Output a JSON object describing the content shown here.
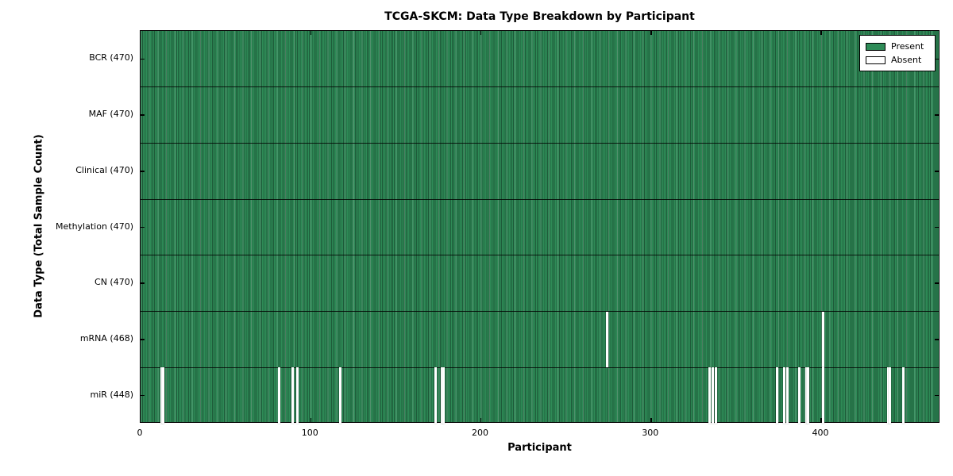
{
  "title": "TCGA-SKCM: Data Type Breakdown by Participant",
  "legend": {
    "items": [
      {
        "label": "Present",
        "color": "#2e8b57"
      },
      {
        "label": "Absent",
        "color": "#ffffff"
      }
    ],
    "position": "upper right"
  },
  "colors": {
    "present": "#2e8b57",
    "absent": "#ffffff",
    "frame": "#000000",
    "background": "#ffffff"
  },
  "chart_data": {
    "type": "heatmap",
    "title": "TCGA-SKCM: Data Type Breakdown by Participant",
    "xlabel": "Participant",
    "ylabel": "Data Type (Total Sample Count)",
    "x_range": [
      0,
      470
    ],
    "x_ticks": [
      0,
      100,
      200,
      300,
      400
    ],
    "n_participants": 470,
    "grid": false,
    "legend_entries": [
      "Present",
      "Absent"
    ],
    "legend_position": "upper right",
    "rows": [
      {
        "data_type": "BCR",
        "tick_label": "BCR (470)",
        "present_count": 470,
        "absent_participants": []
      },
      {
        "data_type": "MAF",
        "tick_label": "MAF (470)",
        "present_count": 470,
        "absent_participants": []
      },
      {
        "data_type": "Clinical",
        "tick_label": "Clinical (470)",
        "present_count": 470,
        "absent_participants": []
      },
      {
        "data_type": "Methylation",
        "tick_label": "Methylation (470)",
        "present_count": 470,
        "absent_participants": []
      },
      {
        "data_type": "CN",
        "tick_label": "CN (470)",
        "present_count": 470,
        "absent_participants": []
      },
      {
        "data_type": "mRNA",
        "tick_label": "mRNA (468)",
        "present_count": 468,
        "absent_participants": [
          274,
          401
        ]
      },
      {
        "data_type": "miR",
        "tick_label": "miR (448)",
        "present_count": 448,
        "absent_participants": [
          12,
          13,
          81,
          89,
          92,
          117,
          173,
          177,
          178,
          334,
          336,
          338,
          374,
          378,
          380,
          387,
          391,
          392,
          401,
          439,
          440,
          448
        ]
      }
    ]
  }
}
